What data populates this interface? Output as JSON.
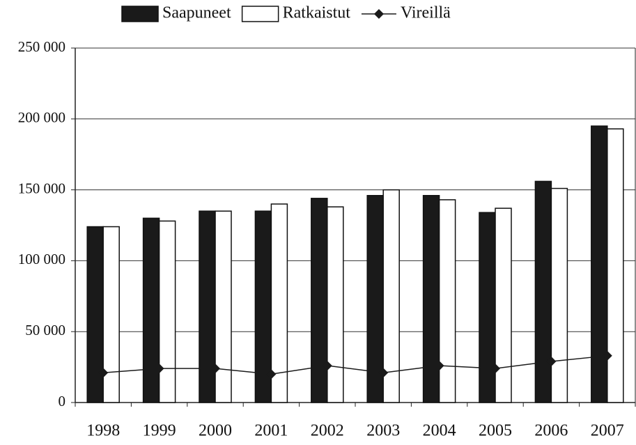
{
  "chart_data": {
    "type": "bar",
    "categories": [
      "1998",
      "1999",
      "2000",
      "2001",
      "2002",
      "2003",
      "2004",
      "2005",
      "2006",
      "2007"
    ],
    "series": [
      {
        "name": "Saapuneet",
        "color": "#1a1a1a",
        "values": [
          124000,
          130000,
          135000,
          135000,
          144000,
          146000,
          146000,
          134000,
          156000,
          195000
        ]
      },
      {
        "name": "Ratkaistut",
        "color": "#ffffff",
        "values": [
          124000,
          128000,
          135000,
          140000,
          138000,
          150000,
          143000,
          137000,
          151000,
          193000
        ]
      },
      {
        "name": "Vireillä",
        "type": "line",
        "color": "#1a1a1a",
        "values": [
          21000,
          24000,
          24000,
          20000,
          26000,
          21000,
          26000,
          24000,
          29000,
          33000
        ]
      }
    ],
    "ylim": [
      0,
      250000
    ],
    "yticks": [
      0,
      {
        "value": 50000,
        "label": "50 000"
      },
      {
        "value": 100000,
        "label": "100 000"
      },
      {
        "value": 150000,
        "label": "150 000"
      },
      {
        "value": 200000,
        "label": "200 000"
      },
      {
        "value": 250000,
        "label": "250 000"
      }
    ],
    "grid": true,
    "legend": "top"
  }
}
